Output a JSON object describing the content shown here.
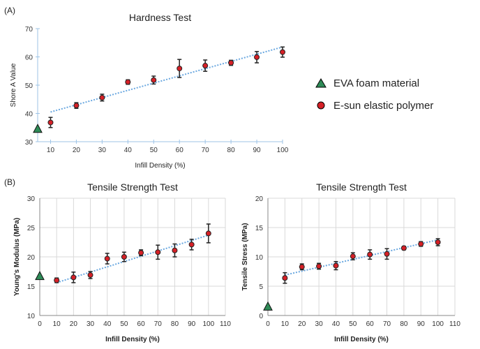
{
  "figure": {
    "panel_a_label": "(A)",
    "panel_b_label": "(B)",
    "colors": {
      "polymer_fill": "#d62027",
      "eva_fill": "#2e8b57",
      "trend": "#6aa8e0",
      "axis": "#888888",
      "grid": "#d9d9d9",
      "axis_blue": "#9dc3e6"
    }
  },
  "legend": {
    "items": [
      {
        "label": "EVA foam material",
        "marker": "triangle"
      },
      {
        "label": "E-sun elastic polymer",
        "marker": "circle"
      }
    ]
  },
  "chart_data": [
    {
      "id": "hardness",
      "type": "scatter",
      "title": "Hardness Test",
      "xlabel": "Infill Density (%)",
      "ylabel": "Shore A Value",
      "xlim": [
        5,
        100
      ],
      "ylim": [
        30,
        70
      ],
      "xticks": [
        10,
        20,
        30,
        40,
        50,
        60,
        70,
        80,
        90,
        100
      ],
      "yticks": [
        30,
        40,
        50,
        60,
        70
      ],
      "grid": false,
      "series": [
        {
          "name": "E-sun elastic polymer",
          "marker": "circle",
          "x": [
            10,
            20,
            30,
            40,
            50,
            60,
            70,
            80,
            90,
            100
          ],
          "y": [
            36.8,
            42.8,
            45.6,
            51.1,
            51.8,
            55.9,
            56.9,
            57.9,
            59.9,
            61.7
          ],
          "err": [
            1.8,
            1.0,
            1.2,
            0.8,
            1.4,
            3.2,
            2.0,
            0.9,
            2.0,
            1.8
          ]
        },
        {
          "name": "EVA foam material",
          "marker": "triangle",
          "x": [
            5
          ],
          "y": [
            34.5
          ]
        }
      ],
      "trendline": {
        "x": [
          10,
          100
        ],
        "y": [
          40.5,
          63.5
        ]
      }
    },
    {
      "id": "youngs",
      "type": "scatter",
      "title": "Tensile Strength Test",
      "xlabel": "Infill Density (%)",
      "ylabel": "Young's Modulus (MPa)",
      "xlim": [
        0,
        110
      ],
      "ylim": [
        10,
        30
      ],
      "xticks": [
        0,
        10,
        20,
        30,
        40,
        50,
        60,
        70,
        80,
        90,
        100,
        110
      ],
      "yticks": [
        10,
        15,
        20,
        25,
        30
      ],
      "grid": true,
      "series": [
        {
          "name": "E-sun elastic polymer",
          "marker": "circle",
          "x": [
            10,
            20,
            30,
            40,
            50,
            60,
            70,
            80,
            90,
            100
          ],
          "y": [
            16.0,
            16.5,
            16.9,
            19.7,
            20.0,
            20.7,
            20.8,
            21.1,
            22.1,
            24.0
          ],
          "err": [
            0.4,
            0.9,
            0.6,
            0.9,
            0.8,
            0.5,
            1.2,
            1.1,
            0.9,
            1.6
          ]
        },
        {
          "name": "EVA foam material",
          "marker": "triangle",
          "x": [
            0
          ],
          "y": [
            16.7
          ]
        }
      ],
      "trendline": {
        "x": [
          10,
          100
        ],
        "y": [
          15.6,
          23.7
        ]
      }
    },
    {
      "id": "stress",
      "type": "scatter",
      "title": "Tensile Strength Test",
      "xlabel": "Infill Density (%)",
      "ylabel": "Tensile Stress (MPa)",
      "xlim": [
        0,
        110
      ],
      "ylim": [
        0,
        20
      ],
      "xticks": [
        0,
        10,
        20,
        30,
        40,
        50,
        60,
        70,
        80,
        90,
        100,
        110
      ],
      "yticks": [
        0,
        5,
        10,
        15,
        20
      ],
      "grid": true,
      "series": [
        {
          "name": "E-sun elastic polymer",
          "marker": "circle",
          "x": [
            10,
            20,
            30,
            40,
            50,
            60,
            70,
            80,
            90,
            100
          ],
          "y": [
            6.4,
            8.3,
            8.4,
            8.5,
            10.1,
            10.4,
            10.5,
            11.5,
            12.2,
            12.5
          ],
          "err": [
            0.9,
            0.5,
            0.5,
            0.7,
            0.6,
            0.8,
            0.9,
            0.3,
            0.4,
            0.6
          ]
        },
        {
          "name": "EVA foam material",
          "marker": "triangle",
          "x": [
            0
          ],
          "y": [
            1.5
          ]
        }
      ],
      "trendline": {
        "x": [
          10,
          100
        ],
        "y": [
          6.9,
          12.9
        ]
      }
    }
  ]
}
